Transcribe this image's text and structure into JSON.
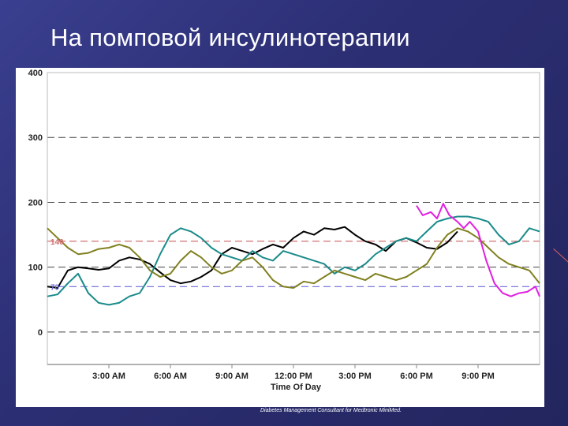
{
  "slide": {
    "title": "На помповой инсулинотерапии",
    "source_note": "Diabetes Management Consultant for Medtronic MiniMed."
  },
  "chart_data": {
    "type": "line",
    "title": "",
    "xlabel": "Time Of Day",
    "ylabel": "",
    "xlim": [
      0,
      24
    ],
    "ylim": [
      -50,
      400
    ],
    "y_ticks": [
      {
        "value": 0,
        "label": "0"
      },
      {
        "value": 100,
        "label": "100"
      },
      {
        "value": 200,
        "label": "200"
      },
      {
        "value": 300,
        "label": "300"
      },
      {
        "value": 400,
        "label": "400"
      }
    ],
    "x_ticks": [
      {
        "value": 3,
        "label": "3:00 AM"
      },
      {
        "value": 6,
        "label": "6:00 AM"
      },
      {
        "value": 9,
        "label": "9:00 AM"
      },
      {
        "value": 12,
        "label": "12:00 PM"
      },
      {
        "value": 15,
        "label": "3:00 PM"
      },
      {
        "value": 18,
        "label": "6:00 PM"
      },
      {
        "value": 21,
        "label": "9:00 PM"
      }
    ],
    "reference_lines": [
      {
        "value": 140,
        "label": "140",
        "color": "#d07070"
      },
      {
        "value": 70,
        "label": "70",
        "color": "#6b6bd8"
      }
    ],
    "grid": "dashed horizontal at 100-unit steps",
    "series": [
      {
        "color": "#000000",
        "points": [
          [
            0,
            70
          ],
          [
            0.5,
            68
          ],
          [
            1,
            95
          ],
          [
            1.5,
            100
          ],
          [
            2,
            98
          ],
          [
            2.5,
            96
          ],
          [
            3,
            98
          ],
          [
            3.5,
            110
          ],
          [
            4,
            115
          ],
          [
            4.5,
            112
          ],
          [
            5,
            105
          ],
          [
            5.5,
            92
          ],
          [
            6,
            80
          ],
          [
            6.5,
            75
          ],
          [
            7,
            78
          ],
          [
            7.5,
            85
          ],
          [
            8,
            95
          ],
          [
            8.5,
            120
          ],
          [
            9,
            130
          ],
          [
            9.5,
            125
          ],
          [
            10,
            120
          ],
          [
            10.5,
            128
          ],
          [
            11,
            135
          ],
          [
            11.5,
            130
          ],
          [
            12,
            145
          ],
          [
            12.5,
            155
          ],
          [
            13,
            150
          ],
          [
            13.5,
            160
          ],
          [
            14,
            158
          ],
          [
            14.5,
            162
          ],
          [
            15,
            150
          ],
          [
            15.5,
            140
          ],
          [
            16,
            135
          ],
          [
            16.5,
            125
          ],
          [
            17,
            140
          ],
          [
            17.5,
            145
          ],
          [
            18,
            138
          ],
          [
            18.5,
            130
          ],
          [
            19,
            128
          ],
          [
            19.5,
            138
          ],
          [
            20,
            155
          ]
        ]
      },
      {
        "color": "#1a8a8a",
        "points": [
          [
            0,
            55
          ],
          [
            0.5,
            58
          ],
          [
            1,
            75
          ],
          [
            1.5,
            90
          ],
          [
            2,
            60
          ],
          [
            2.5,
            45
          ],
          [
            3,
            42
          ],
          [
            3.5,
            45
          ],
          [
            4,
            55
          ],
          [
            4.5,
            60
          ],
          [
            5,
            85
          ],
          [
            5.5,
            120
          ],
          [
            6,
            150
          ],
          [
            6.5,
            160
          ],
          [
            7,
            155
          ],
          [
            7.5,
            145
          ],
          [
            8,
            130
          ],
          [
            8.5,
            120
          ],
          [
            9,
            115
          ],
          [
            9.5,
            110
          ],
          [
            10,
            125
          ],
          [
            10.5,
            115
          ],
          [
            11,
            110
          ],
          [
            11.5,
            125
          ],
          [
            12,
            120
          ],
          [
            12.5,
            115
          ],
          [
            13,
            110
          ],
          [
            13.5,
            105
          ],
          [
            14,
            90
          ],
          [
            14.5,
            100
          ],
          [
            15,
            95
          ],
          [
            15.5,
            105
          ],
          [
            16,
            120
          ],
          [
            16.5,
            130
          ],
          [
            17,
            140
          ],
          [
            17.5,
            145
          ],
          [
            18,
            140
          ],
          [
            18.5,
            155
          ],
          [
            19,
            170
          ],
          [
            19.5,
            175
          ],
          [
            20,
            178
          ],
          [
            20.5,
            178
          ],
          [
            21,
            175
          ],
          [
            21.5,
            170
          ],
          [
            22,
            150
          ],
          [
            22.5,
            135
          ],
          [
            23,
            140
          ],
          [
            23.5,
            160
          ],
          [
            24,
            155
          ]
        ]
      },
      {
        "color": "#808020",
        "points": [
          [
            0,
            160
          ],
          [
            0.5,
            145
          ],
          [
            1,
            130
          ],
          [
            1.5,
            120
          ],
          [
            2,
            122
          ],
          [
            2.5,
            128
          ],
          [
            3,
            130
          ],
          [
            3.5,
            135
          ],
          [
            4,
            130
          ],
          [
            4.5,
            115
          ],
          [
            5,
            95
          ],
          [
            5.5,
            85
          ],
          [
            6,
            90
          ],
          [
            6.5,
            110
          ],
          [
            7,
            125
          ],
          [
            7.5,
            115
          ],
          [
            8,
            100
          ],
          [
            8.5,
            90
          ],
          [
            9,
            95
          ],
          [
            9.5,
            110
          ],
          [
            10,
            115
          ],
          [
            10.5,
            100
          ],
          [
            11,
            80
          ],
          [
            11.5,
            70
          ],
          [
            12,
            68
          ],
          [
            12.5,
            78
          ],
          [
            13,
            75
          ],
          [
            13.5,
            85
          ],
          [
            14,
            95
          ],
          [
            14.5,
            90
          ],
          [
            15,
            85
          ],
          [
            15.5,
            80
          ],
          [
            16,
            90
          ],
          [
            16.5,
            85
          ],
          [
            17,
            80
          ],
          [
            17.5,
            85
          ],
          [
            18,
            95
          ],
          [
            18.5,
            105
          ],
          [
            19,
            130
          ],
          [
            19.5,
            150
          ],
          [
            20,
            160
          ],
          [
            20.5,
            155
          ],
          [
            21,
            145
          ],
          [
            21.5,
            130
          ],
          [
            22,
            115
          ],
          [
            22.5,
            105
          ],
          [
            23,
            100
          ],
          [
            23.5,
            95
          ],
          [
            24,
            75
          ]
        ]
      },
      {
        "color": "#e020e0",
        "points": [
          [
            18,
            195
          ],
          [
            18.3,
            180
          ],
          [
            18.7,
            185
          ],
          [
            19,
            175
          ],
          [
            19.3,
            198
          ],
          [
            19.6,
            180
          ],
          [
            20,
            170
          ],
          [
            20.3,
            160
          ],
          [
            20.6,
            170
          ],
          [
            21,
            155
          ],
          [
            21.4,
            110
          ],
          [
            21.8,
            75
          ],
          [
            22.2,
            60
          ],
          [
            22.6,
            55
          ],
          [
            23,
            60
          ],
          [
            23.4,
            62
          ],
          [
            23.8,
            70
          ],
          [
            24,
            55
          ]
        ]
      }
    ]
  }
}
